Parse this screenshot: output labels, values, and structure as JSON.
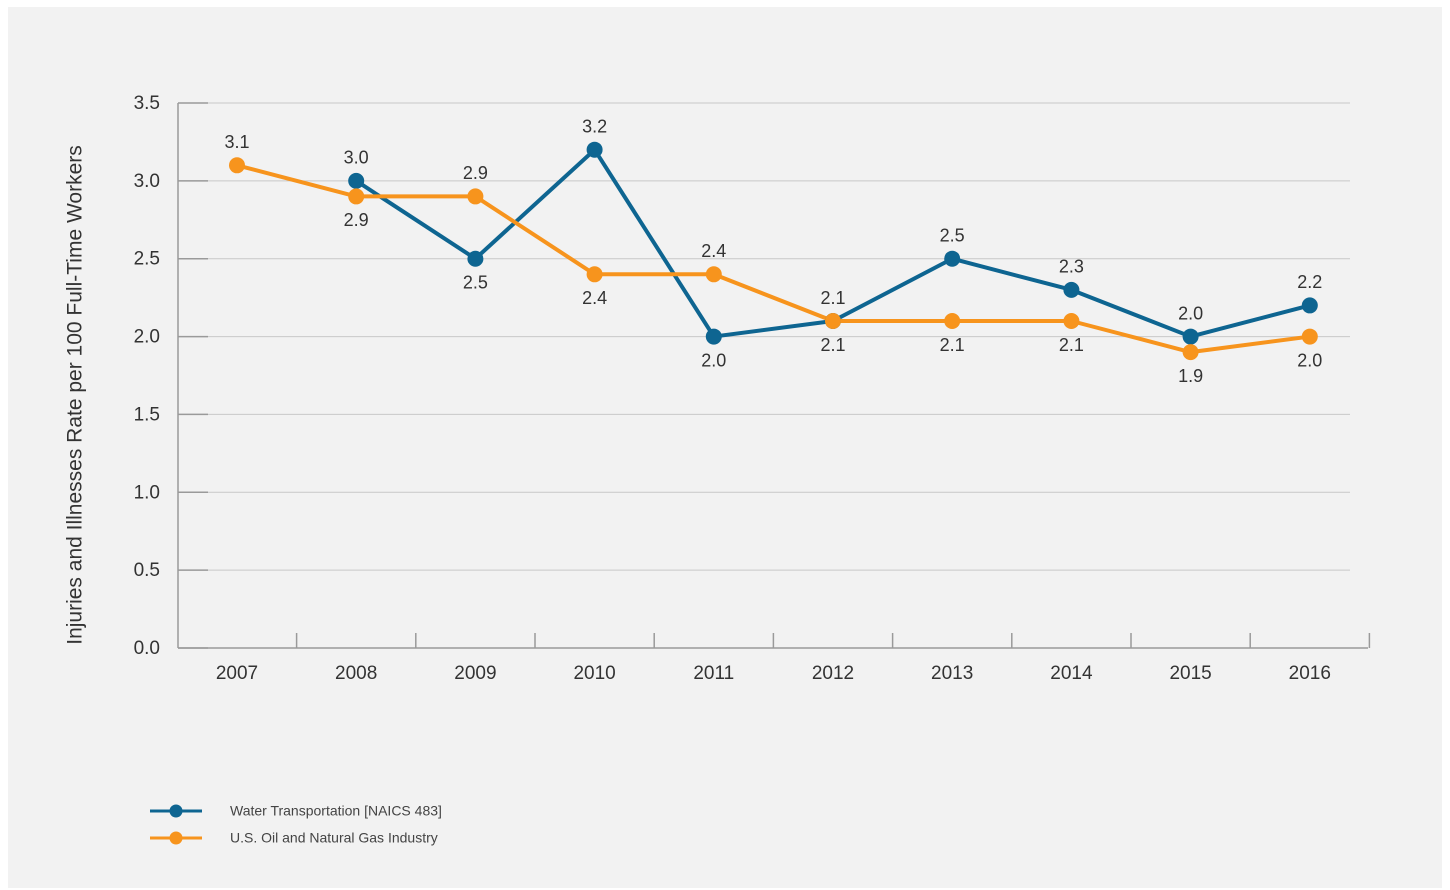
{
  "chart_data": {
    "type": "line",
    "title": "",
    "xlabel": "",
    "ylabel": "Injuries and Illnesses Rate per 100 Full-Time Workers",
    "categories": [
      "2007",
      "2008",
      "2009",
      "2010",
      "2011",
      "2012",
      "2013",
      "2014",
      "2015",
      "2016"
    ],
    "ylim": [
      0,
      3.5
    ],
    "yticks": [
      "0.0",
      "0.5",
      "1.0",
      "1.5",
      "2.0",
      "2.5",
      "3.0",
      "3.5"
    ],
    "grid": true,
    "legend_position": "bottom-left",
    "series": [
      {
        "name": "Water Transportation [NAICS 483]",
        "color": "#0e6591",
        "values": [
          null,
          3.0,
          2.5,
          3.2,
          2.0,
          2.1,
          2.5,
          2.3,
          2.0,
          2.2
        ],
        "labels": [
          null,
          "3.0",
          "2.5",
          "3.2",
          "2.0",
          "2.1",
          "2.5",
          "2.3",
          "2.0",
          "2.2"
        ]
      },
      {
        "name": "U.S. Oil and Natural Gas Industry",
        "color": "#f7941d",
        "values": [
          3.1,
          2.9,
          2.9,
          2.4,
          2.4,
          2.1,
          2.1,
          2.1,
          1.9,
          2.0
        ],
        "labels": [
          "3.1",
          "2.9",
          "2.9",
          "2.4",
          "2.4",
          "2.1",
          "2.1",
          "2.1",
          "1.9",
          "2.0"
        ]
      }
    ]
  }
}
